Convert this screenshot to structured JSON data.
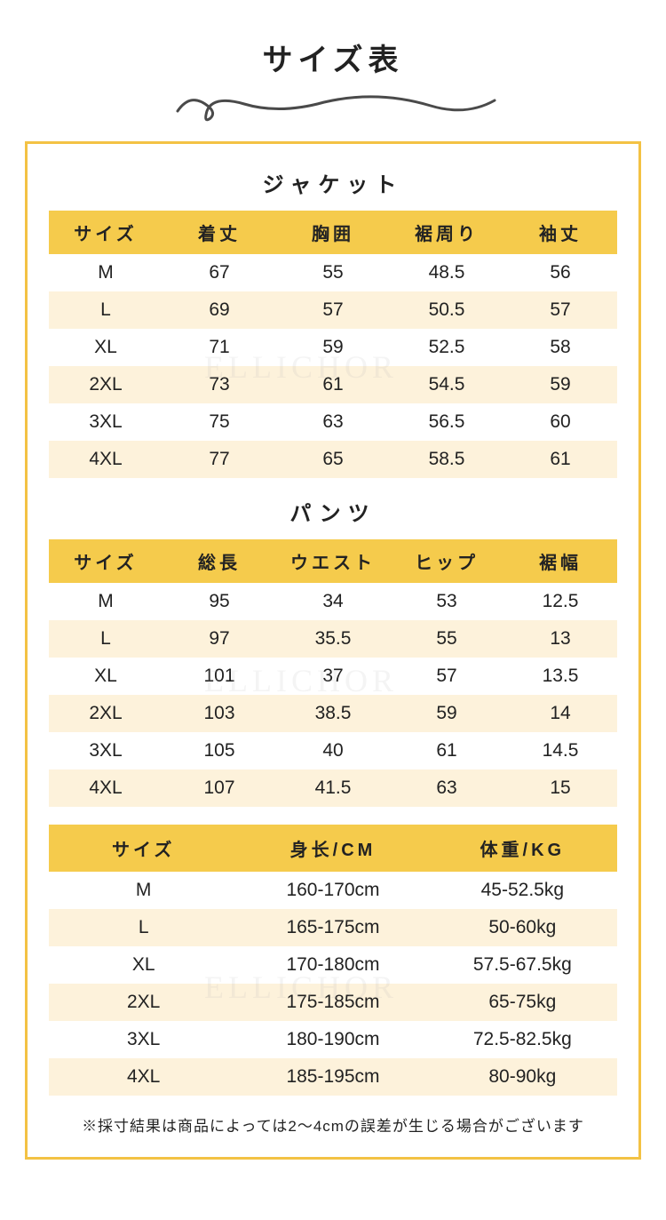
{
  "title": "サイズ表",
  "watermark_text": "ELLICHOR",
  "colors": {
    "frame_border": "#f3c244",
    "header_bg": "#f5cb4c",
    "row_alt_bg": "#fdf2db",
    "background": "#ffffff",
    "text": "#222222",
    "squiggle": "#4a4a4a"
  },
  "jacket": {
    "title": "ジャケット",
    "columns": [
      "サイズ",
      "着丈",
      "胸囲",
      "裾周り",
      "袖丈"
    ],
    "rows": [
      [
        "M",
        "67",
        "55",
        "48.5",
        "56"
      ],
      [
        "L",
        "69",
        "57",
        "50.5",
        "57"
      ],
      [
        "XL",
        "71",
        "59",
        "52.5",
        "58"
      ],
      [
        "2XL",
        "73",
        "61",
        "54.5",
        "59"
      ],
      [
        "3XL",
        "75",
        "63",
        "56.5",
        "60"
      ],
      [
        "4XL",
        "77",
        "65",
        "58.5",
        "61"
      ]
    ]
  },
  "pants": {
    "title": "パンツ",
    "columns": [
      "サイズ",
      "総長",
      "ウエスト",
      "ヒップ",
      "裾幅"
    ],
    "rows": [
      [
        "M",
        "95",
        "34",
        "53",
        "12.5"
      ],
      [
        "L",
        "97",
        "35.5",
        "55",
        "13"
      ],
      [
        "XL",
        "101",
        "37",
        "57",
        "13.5"
      ],
      [
        "2XL",
        "103",
        "38.5",
        "59",
        "14"
      ],
      [
        "3XL",
        "105",
        "40",
        "61",
        "14.5"
      ],
      [
        "4XL",
        "107",
        "41.5",
        "63",
        "15"
      ]
    ]
  },
  "reference": {
    "columns": [
      "サイズ",
      "身长/CM",
      "体重/KG"
    ],
    "rows": [
      [
        "M",
        "160-170cm",
        "45-52.5kg"
      ],
      [
        "L",
        "165-175cm",
        "50-60kg"
      ],
      [
        "XL",
        "170-180cm",
        "57.5-67.5kg"
      ],
      [
        "2XL",
        "175-185cm",
        "65-75kg"
      ],
      [
        "3XL",
        "180-190cm",
        "72.5-82.5kg"
      ],
      [
        "4XL",
        "185-195cm",
        "80-90kg"
      ]
    ]
  },
  "footnote": "※採寸結果は商品によっては2～4cmの誤差が生じる場合がございます"
}
